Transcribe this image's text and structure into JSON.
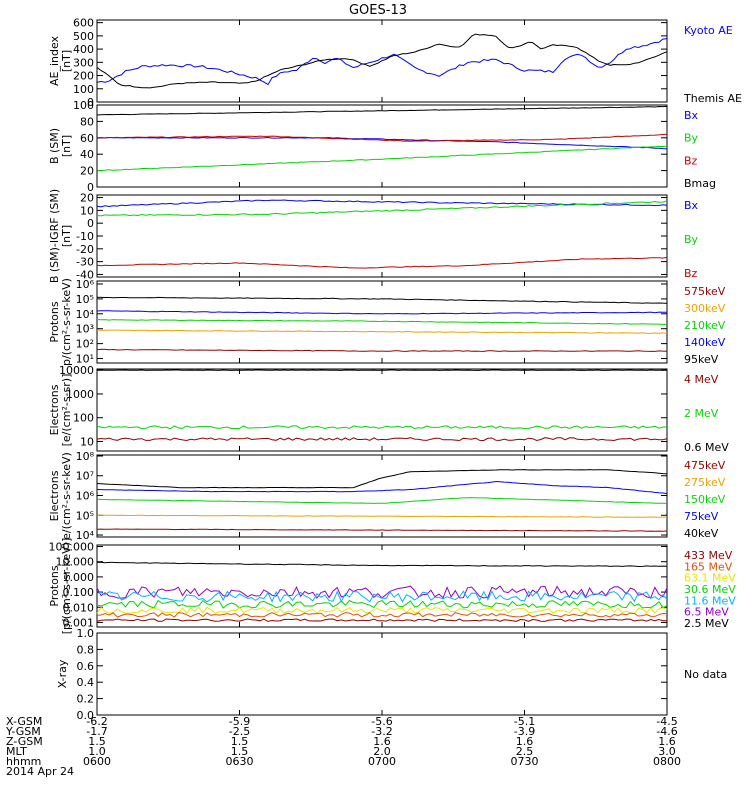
{
  "title": "GOES-13",
  "colors": {
    "black": "#000000",
    "blue": "#0000ff",
    "green": "#00d800",
    "red": "#c80000",
    "orange": "#f0a000",
    "yellow": "#e6e600",
    "cyan": "#00b4ff",
    "purple": "#9600c8",
    "darkred": "#960000",
    "orangered": "#e65000"
  },
  "chart_data": [
    {
      "type": "line",
      "ylabel": "AE_index\n[nT]",
      "ytick_labels": [
        "0",
        "100",
        "200",
        "300",
        "400",
        "500",
        "600"
      ],
      "ylim": [
        0,
        620
      ],
      "legend": [
        {
          "label": "Kyoto AE",
          "color": "blue"
        },
        {
          "label": "Themis AE",
          "color": "black"
        }
      ],
      "series": [
        {
          "name": "Kyoto AE",
          "color": "blue",
          "noise": 10,
          "x": [
            0,
            2,
            5,
            8,
            12,
            18,
            22,
            26,
            28,
            30,
            31,
            33,
            35,
            38,
            40,
            42,
            45,
            50,
            52,
            56,
            60,
            65,
            70,
            75,
            80,
            82,
            85,
            88,
            90,
            93,
            95,
            97,
            100
          ],
          "y": [
            150,
            160,
            230,
            270,
            280,
            270,
            240,
            200,
            180,
            140,
            190,
            230,
            240,
            340,
            300,
            330,
            260,
            330,
            360,
            250,
            200,
            300,
            320,
            240,
            230,
            330,
            360,
            260,
            300,
            410,
            420,
            440,
            480
          ]
        },
        {
          "name": "Themis AE",
          "color": "black",
          "noise": 4,
          "x": [
            0,
            2,
            4,
            6,
            8,
            10,
            14,
            20,
            26,
            28,
            30,
            32,
            36,
            40,
            44,
            48,
            52,
            56,
            60,
            62,
            64,
            66,
            68,
            70,
            72,
            74,
            76,
            78,
            80,
            84,
            88,
            90,
            93,
            96,
            100
          ],
          "y": [
            260,
            200,
            130,
            120,
            110,
            110,
            140,
            150,
            140,
            160,
            200,
            240,
            280,
            320,
            330,
            270,
            350,
            380,
            440,
            420,
            420,
            510,
            510,
            500,
            410,
            420,
            460,
            400,
            430,
            420,
            310,
            280,
            280,
            310,
            380
          ]
        }
      ]
    },
    {
      "type": "line",
      "ylabel": "B (SM)\n[nT]",
      "ytick_labels": [
        "0",
        "20",
        "40",
        "60",
        "80",
        "100"
      ],
      "ylim": [
        0,
        100
      ],
      "legend": [
        {
          "label": "Bx",
          "color": "blue"
        },
        {
          "label": "By",
          "color": "green"
        },
        {
          "label": "Bz",
          "color": "red"
        },
        {
          "label": "Bmag",
          "color": "black"
        }
      ],
      "series": [
        {
          "name": "Bmag",
          "color": "black",
          "noise": 0.3,
          "x": [
            0,
            50,
            100
          ],
          "y": [
            88,
            93,
            98
          ]
        },
        {
          "name": "Bx",
          "color": "blue",
          "noise": 0.4,
          "x": [
            0,
            40,
            70,
            100
          ],
          "y": [
            60,
            60,
            55,
            47
          ]
        },
        {
          "name": "Bz",
          "color": "red",
          "noise": 0.4,
          "x": [
            0,
            30,
            55,
            80,
            100
          ],
          "y": [
            60,
            62,
            56,
            58,
            64
          ]
        },
        {
          "name": "By",
          "color": "green",
          "noise": 0.4,
          "x": [
            0,
            50,
            100
          ],
          "y": [
            20,
            34,
            50
          ]
        }
      ]
    },
    {
      "type": "line",
      "ylabel": "B (SM)-IGRF (SM)\n[nT]",
      "ytick_labels": [
        "-40",
        "-30",
        "-20",
        "-10",
        "0",
        "10",
        "20"
      ],
      "ylim": [
        -42,
        22
      ],
      "legend": [
        {
          "label": "Bx",
          "color": "blue"
        },
        {
          "label": "By",
          "color": "green"
        },
        {
          "label": "Bz",
          "color": "red"
        }
      ],
      "series": [
        {
          "name": "Bx",
          "color": "blue",
          "noise": 0.4,
          "x": [
            0,
            30,
            60,
            100
          ],
          "y": [
            13,
            18,
            16,
            14
          ]
        },
        {
          "name": "By",
          "color": "green",
          "noise": 0.5,
          "x": [
            0,
            30,
            60,
            100
          ],
          "y": [
            6,
            7,
            11,
            17
          ]
        },
        {
          "name": "Bz",
          "color": "red",
          "noise": 0.3,
          "x": [
            0,
            25,
            45,
            65,
            85,
            100
          ],
          "y": [
            -33,
            -31,
            -35,
            -33,
            -28,
            -27
          ]
        }
      ]
    },
    {
      "type": "line",
      "ylabel": "Protons\np/(cm²-s-sr-keV)",
      "ytick_labels": [
        "10¹",
        "10²",
        "10³",
        "10⁴",
        "10⁵",
        "10⁶"
      ],
      "log": true,
      "ylim": [
        0.7,
        6.2
      ],
      "legend": [
        {
          "label": "575keV",
          "color": "darkred"
        },
        {
          "label": "300keV",
          "color": "orange"
        },
        {
          "label": "210keV",
          "color": "green"
        },
        {
          "label": "140keV",
          "color": "blue"
        },
        {
          "label": "95keV",
          "color": "black"
        }
      ],
      "series": [
        {
          "name": "95keV",
          "color": "black",
          "noise": 0.02,
          "x": [
            0,
            50,
            100
          ],
          "y": [
            5.1,
            5.0,
            4.7
          ]
        },
        {
          "name": "140keV",
          "color": "blue",
          "noise": 0.02,
          "x": [
            0,
            50,
            100
          ],
          "y": [
            4.2,
            4.0,
            4.1
          ]
        },
        {
          "name": "210keV",
          "color": "green",
          "noise": 0.02,
          "x": [
            0,
            50,
            100
          ],
          "y": [
            3.6,
            3.5,
            3.3
          ]
        },
        {
          "name": "300keV",
          "color": "orange",
          "noise": 0.02,
          "x": [
            0,
            50,
            100
          ],
          "y": [
            2.9,
            2.8,
            2.7
          ]
        },
        {
          "name": "575keV",
          "color": "darkred",
          "noise": 0.02,
          "x": [
            0,
            50,
            100
          ],
          "y": [
            1.6,
            1.5,
            1.5
          ]
        }
      ]
    },
    {
      "type": "line",
      "ylabel": "Electrons\n[e/(cm²-s-sr)]",
      "ytick_labels": [
        "10",
        "100",
        "1000",
        "10000"
      ],
      "log": true,
      "ylim": [
        0.6,
        4.05
      ],
      "legend": [
        {
          "label": "4 MeV",
          "color": "darkred"
        },
        {
          "label": "2 MeV",
          "color": "green"
        },
        {
          "label": "0.6 MeV",
          "color": "black"
        }
      ],
      "series": [
        {
          "name": "0.6 MeV",
          "color": "black",
          "noise": 0.01,
          "x": [
            0,
            100
          ],
          "y": [
            4.0,
            4.0
          ]
        },
        {
          "name": "2 MeV",
          "color": "green",
          "noise": 0.06,
          "x": [
            0,
            50,
            100
          ],
          "y": [
            1.6,
            1.6,
            1.6
          ]
        },
        {
          "name": "4 MeV",
          "color": "darkred",
          "noise": 0.06,
          "x": [
            0,
            50,
            100
          ],
          "y": [
            1.1,
            1.1,
            1.1
          ]
        }
      ]
    },
    {
      "type": "line",
      "ylabel": "Electrons\ne/(cm²-s-sr-keV)",
      "ytick_labels": [
        "10⁴",
        "10⁵",
        "10⁶",
        "10⁷",
        "10⁸"
      ],
      "log": true,
      "ylim": [
        3.9,
        8.05
      ],
      "legend": [
        {
          "label": "475keV",
          "color": "darkred"
        },
        {
          "label": "275keV",
          "color": "orange"
        },
        {
          "label": "150keV",
          "color": "green"
        },
        {
          "label": "75keV",
          "color": "blue"
        },
        {
          "label": "40keV",
          "color": "black"
        }
      ],
      "series": [
        {
          "name": "40keV",
          "color": "black",
          "noise": 0.01,
          "x": [
            0,
            15,
            45,
            50,
            55,
            70,
            90,
            100
          ],
          "y": [
            6.6,
            6.4,
            6.4,
            6.9,
            7.2,
            7.3,
            7.3,
            7.1
          ]
        },
        {
          "name": "75keV",
          "color": "blue",
          "noise": 0.01,
          "x": [
            0,
            20,
            45,
            55,
            70,
            80,
            90,
            100
          ],
          "y": [
            6.3,
            6.2,
            6.2,
            6.3,
            6.7,
            6.5,
            6.4,
            6.1
          ]
        },
        {
          "name": "150keV",
          "color": "green",
          "noise": 0.01,
          "x": [
            0,
            50,
            65,
            100
          ],
          "y": [
            5.8,
            5.6,
            5.9,
            5.6
          ]
        },
        {
          "name": "275keV",
          "color": "orange",
          "noise": 0.01,
          "x": [
            0,
            100
          ],
          "y": [
            5.0,
            4.9
          ]
        },
        {
          "name": "475keV",
          "color": "darkred",
          "noise": 0.01,
          "x": [
            0,
            100
          ],
          "y": [
            4.3,
            4.2
          ]
        }
      ]
    },
    {
      "type": "line",
      "ylabel": "Protons\n[p/(cm²-s-sr-keV)]",
      "ytick_labels": [
        "0.001",
        "0.010",
        "0.100",
        "1.000",
        "10.000",
        "100.000"
      ],
      "log": true,
      "ylim": [
        -3.3,
        2.1
      ],
      "legend": [
        {
          "label": "433 MeV",
          "color": "darkred"
        },
        {
          "label": "165 MeV",
          "color": "orangered"
        },
        {
          "label": "63.1 MeV",
          "color": "yellow"
        },
        {
          "label": "30.6 MeV",
          "color": "green"
        },
        {
          "label": "11.6 MeV",
          "color": "cyan"
        },
        {
          "label": "6.5 MeV",
          "color": "purple"
        },
        {
          "label": "2.5 MeV",
          "color": "black"
        }
      ],
      "series": [
        {
          "name": "2.5 MeV",
          "color": "black",
          "noise": 0.02,
          "x": [
            0,
            50,
            100
          ],
          "y": [
            0.95,
            0.75,
            0.7
          ]
        },
        {
          "name": "6.5 MeV",
          "color": "purple",
          "noise": 0.4,
          "x": [
            0,
            100
          ],
          "y": [
            -1.0,
            -1.0
          ]
        },
        {
          "name": "11.6 MeV",
          "color": "cyan",
          "noise": 0.35,
          "x": [
            0,
            100
          ],
          "y": [
            -1.3,
            -1.3
          ]
        },
        {
          "name": "30.6 MeV",
          "color": "green",
          "noise": 0.25,
          "x": [
            0,
            100
          ],
          "y": [
            -1.8,
            -1.8
          ]
        },
        {
          "name": "63.1 MeV",
          "color": "yellow",
          "noise": 0.2,
          "x": [
            0,
            100
          ],
          "y": [
            -2.2,
            -2.2
          ]
        },
        {
          "name": "165 MeV",
          "color": "orangered",
          "noise": 0.15,
          "x": [
            0,
            100
          ],
          "y": [
            -2.5,
            -2.5
          ]
        },
        {
          "name": "433 MeV",
          "color": "darkred",
          "noise": 0.08,
          "x": [
            0,
            100
          ],
          "y": [
            -2.85,
            -2.85
          ]
        }
      ]
    },
    {
      "type": "line",
      "ylabel": "X-ray",
      "ytick_labels": [
        "0.0",
        "0.2",
        "0.4",
        "0.6",
        "0.8",
        "1.0"
      ],
      "ylim": [
        0,
        1
      ],
      "legend": [],
      "no_data_label": "No data",
      "series": []
    }
  ],
  "x_axis": {
    "row_labels": [
      "X-GSM",
      "Y-GSM",
      "Z-GSM",
      "MLT",
      "hhmm",
      "2014 Apr 24"
    ],
    "columns": [
      [
        "-6.2",
        "-1.7",
        "1.5",
        "1.0",
        "0600"
      ],
      [
        "-5.9",
        "-2.5",
        "1.5",
        "1.5",
        "0630"
      ],
      [
        "-5.6",
        "-3.2",
        "1.6",
        "2.0",
        "0700"
      ],
      [
        "-5.1",
        "-3.9",
        "1.6",
        "2.5",
        "0730"
      ],
      [
        "-4.5",
        "-4.6",
        "1.6",
        "3.0",
        "0800"
      ]
    ]
  }
}
